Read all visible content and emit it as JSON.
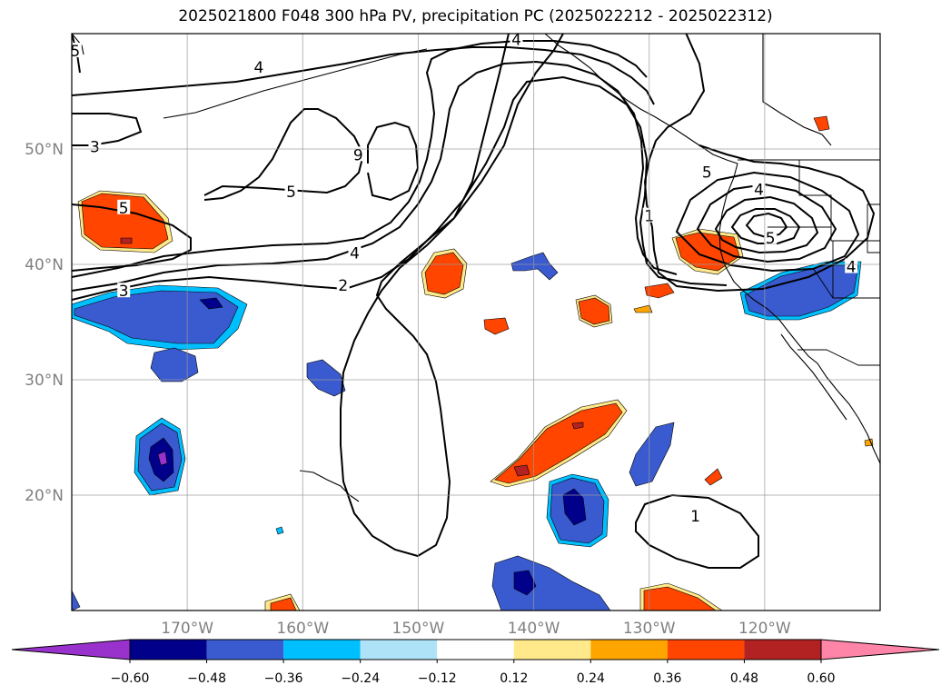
{
  "title": "2025021800 F048 300 hPa PV, precipitation PC (2025022212 - 2025022312)",
  "map": {
    "projection": "plate-carree",
    "lon_range": [
      -180,
      -110
    ],
    "lat_range": [
      10,
      60
    ],
    "lon_ticks": [
      -170,
      -160,
      -150,
      -140,
      -130,
      -120
    ],
    "lat_ticks": [
      20,
      30,
      40,
      50
    ],
    "lon_tick_labels": [
      "170°W",
      "160°W",
      "150°W",
      "140°W",
      "130°W",
      "120°W"
    ],
    "lat_tick_labels": [
      "20°N",
      "30°N",
      "40°N",
      "50°N"
    ],
    "grid": true
  },
  "pv_contour_labels": [
    {
      "text": "4",
      "lon": -163.8,
      "lat": 57.1
    },
    {
      "text": "3",
      "lon": -178.0,
      "lat": 50.2
    },
    {
      "text": "9",
      "lon": -155.2,
      "lat": 49.5
    },
    {
      "text": "5",
      "lon": -161.0,
      "lat": 46.3
    },
    {
      "text": "5",
      "lon": -175.5,
      "lat": 44.9
    },
    {
      "text": "4",
      "lon": -155.5,
      "lat": 41.0
    },
    {
      "text": "3",
      "lon": -175.5,
      "lat": 37.7
    },
    {
      "text": "2",
      "lon": -156.5,
      "lat": 38.2
    },
    {
      "text": "1",
      "lon": -130.0,
      "lat": 44.2
    },
    {
      "text": "5",
      "lon": -125.0,
      "lat": 48.0
    },
    {
      "text": "4",
      "lon": -120.5,
      "lat": 46.5
    },
    {
      "text": "5",
      "lon": -119.5,
      "lat": 42.3
    },
    {
      "text": "4",
      "lon": -112.5,
      "lat": 39.8
    },
    {
      "text": "1",
      "lon": -126.0,
      "lat": 18.2
    },
    {
      "text": "4",
      "lon": -141.5,
      "lat": 59.5
    },
    {
      "text": "5",
      "lon": -179.7,
      "lat": 58.5
    }
  ],
  "colorbar": {
    "extend": "both",
    "bounds": [
      -0.6,
      -0.48,
      -0.36,
      -0.24,
      -0.12,
      0.12,
      0.24,
      0.36,
      0.48,
      0.6
    ],
    "tick_labels": [
      "−0.60",
      "−0.48",
      "−0.36",
      "−0.24",
      "−0.12",
      "0.12",
      "0.24",
      "0.36",
      "0.48",
      "0.60"
    ],
    "colors": [
      "#9932cc",
      "#00008b",
      "#3a5bcf",
      "#00bfff",
      "#aee2f7",
      "#ffffff",
      "#ffe98a",
      "#ffa500",
      "#ff4500",
      "#b22222",
      "#ff85a8"
    ]
  }
}
